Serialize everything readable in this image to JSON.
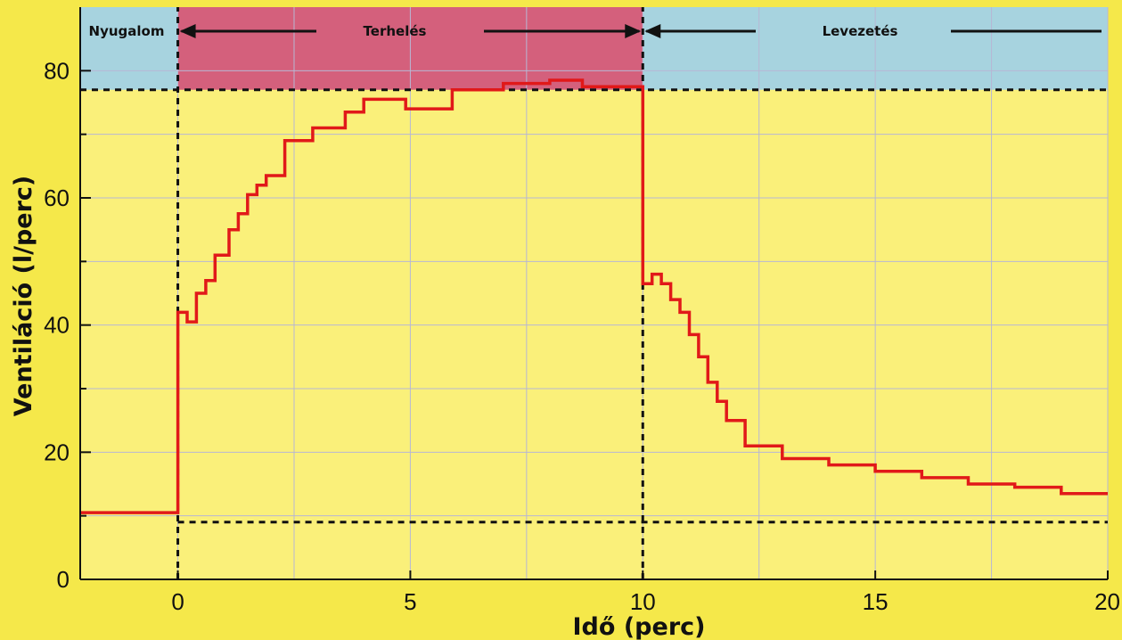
{
  "chart_data": {
    "type": "line",
    "step": true,
    "xlabel": "Idő (perc)",
    "ylabel": "Ventiláció (l/perc)",
    "xlim": [
      -2.1,
      20
    ],
    "ylim": [
      0,
      90
    ],
    "x_ticks": [
      0,
      5,
      10,
      15,
      20
    ],
    "y_ticks": [
      0,
      20,
      40,
      60,
      80
    ],
    "grid": true,
    "colors": {
      "background": "#f5e84a",
      "plot_background": "#faf07a",
      "rest_band": "#a7d3df",
      "exercise_band": "#d4607c",
      "recovery_band": "#a7d3df",
      "series_line": "#e11919",
      "grid": "#b7b7d4",
      "reference_line": "#111111"
    },
    "phases": [
      {
        "label": "Nyugalom",
        "x": [
          -2.1,
          0
        ]
      },
      {
        "label": "Terhelés",
        "x": [
          0,
          10
        ]
      },
      {
        "label": "Levezetés",
        "x": [
          10,
          20
        ]
      }
    ],
    "reference_lines": [
      {
        "type": "horizontal",
        "y": 77,
        "x": [
          -2.1,
          20
        ],
        "style": "dashed"
      },
      {
        "type": "horizontal",
        "y": 9,
        "x": [
          0,
          20
        ],
        "style": "dashed"
      },
      {
        "type": "vertical",
        "x": 0,
        "y": [
          0,
          90
        ],
        "style": "dashed"
      },
      {
        "type": "vertical",
        "x": 10,
        "y": [
          0,
          90
        ],
        "style": "dashed"
      }
    ],
    "series": [
      {
        "x": [
          -2.1,
          0,
          0,
          0.2,
          0.2,
          0.4,
          0.4,
          0.6,
          0.6,
          0.8,
          0.8,
          1.1,
          1.1,
          1.3,
          1.3,
          1.5,
          1.5,
          1.7,
          1.7,
          1.9,
          1.9,
          2.3,
          2.3,
          2.9,
          2.9,
          3.6,
          3.6,
          4.0,
          4.0,
          4.9,
          4.9,
          5.9,
          5.9,
          7.0,
          7.0,
          7.4,
          7.4,
          8.0,
          8.0,
          8.7,
          8.7,
          9.4,
          9.4,
          10,
          10,
          10.2,
          10.2,
          10.4,
          10.4,
          10.6,
          10.6,
          10.8,
          10.8,
          11.0,
          11.0,
          11.2,
          11.2,
          11.4,
          11.4,
          11.6,
          11.6,
          11.8,
          11.8,
          12.2,
          12.2,
          13.0,
          13.0,
          14.0,
          14.0,
          15.0,
          15.0,
          16.0,
          16.0,
          17.0,
          17.0,
          18.0,
          18.0,
          19.0,
          19.0,
          20.0
        ],
        "y": [
          10.5,
          10.5,
          42,
          42,
          40.5,
          40.5,
          45,
          45,
          47,
          47,
          51,
          51,
          55,
          55,
          57.5,
          57.5,
          60.5,
          60.5,
          62,
          62,
          63.5,
          63.5,
          69,
          69,
          71,
          71,
          73.5,
          73.5,
          75.5,
          75.5,
          74,
          74,
          77,
          77,
          78,
          78,
          78,
          78,
          78.5,
          78.5,
          77.5,
          77.5,
          77.5,
          77.5,
          46.5,
          46.5,
          48,
          48,
          46.5,
          46.5,
          44,
          44,
          42,
          42,
          38.5,
          38.5,
          35,
          35,
          31,
          31,
          28,
          28,
          25,
          25,
          21,
          21,
          19,
          19,
          18,
          18,
          17,
          17,
          16,
          16,
          15,
          15,
          14.5,
          14.5,
          13.5,
          13.5
        ]
      }
    ]
  }
}
